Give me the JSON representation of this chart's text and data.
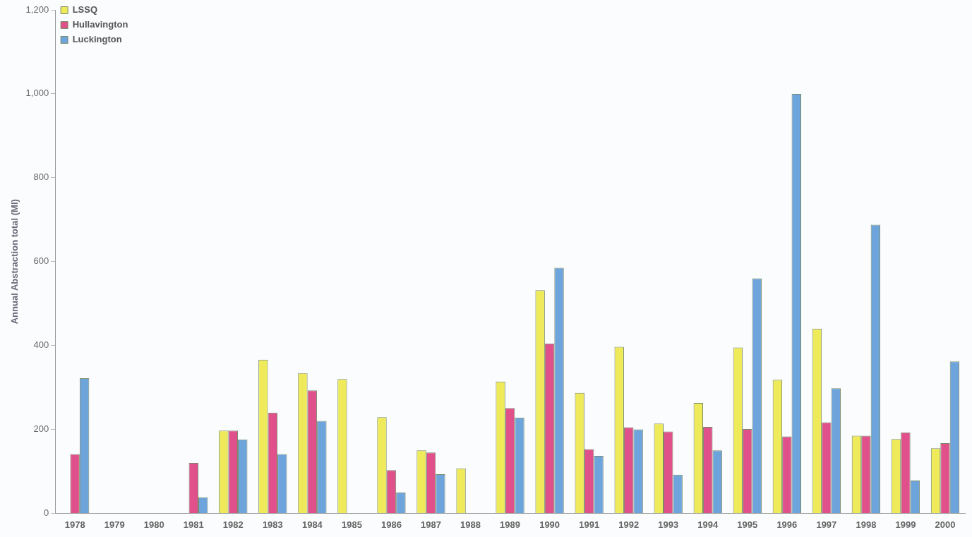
{
  "chart_data": {
    "type": "bar",
    "ylabel": "Annual Abstraction total (Ml)",
    "categories": [
      "1978",
      "1979",
      "1980",
      "1981",
      "1982",
      "1983",
      "1984",
      "1985",
      "1986",
      "1987",
      "1988",
      "1989",
      "1990",
      "1991",
      "1992",
      "1993",
      "1994",
      "1995",
      "1996",
      "1997",
      "1998",
      "1999",
      "2000"
    ],
    "series": [
      {
        "name": "LSSQ",
        "color": "#eeea5a",
        "values": [
          null,
          null,
          null,
          null,
          197,
          366,
          334,
          320,
          229,
          150,
          107,
          314,
          532,
          287,
          397,
          214,
          263,
          395,
          318,
          440,
          185,
          177,
          155
        ]
      },
      {
        "name": "Hullavington",
        "color": "#e0508a",
        "values": [
          141,
          null,
          null,
          120,
          197,
          240,
          293,
          null,
          103,
          145,
          null,
          251,
          405,
          153,
          205,
          195,
          206,
          201,
          183,
          217,
          185,
          193,
          167
        ]
      },
      {
        "name": "Luckington",
        "color": "#6ea4dc",
        "values": [
          322,
          null,
          null,
          38,
          176,
          141,
          220,
          null,
          50,
          93,
          null,
          228,
          585,
          137,
          200,
          92,
          150,
          560,
          1000,
          298,
          688,
          78,
          362
        ]
      }
    ],
    "ylim": [
      0,
      1200
    ],
    "yticks": [
      0,
      200,
      400,
      600,
      800,
      {
        "value": 1000,
        "label": "1,000"
      },
      {
        "value": 1200,
        "label": "1,200"
      }
    ],
    "grid": false,
    "legend": "top left"
  }
}
